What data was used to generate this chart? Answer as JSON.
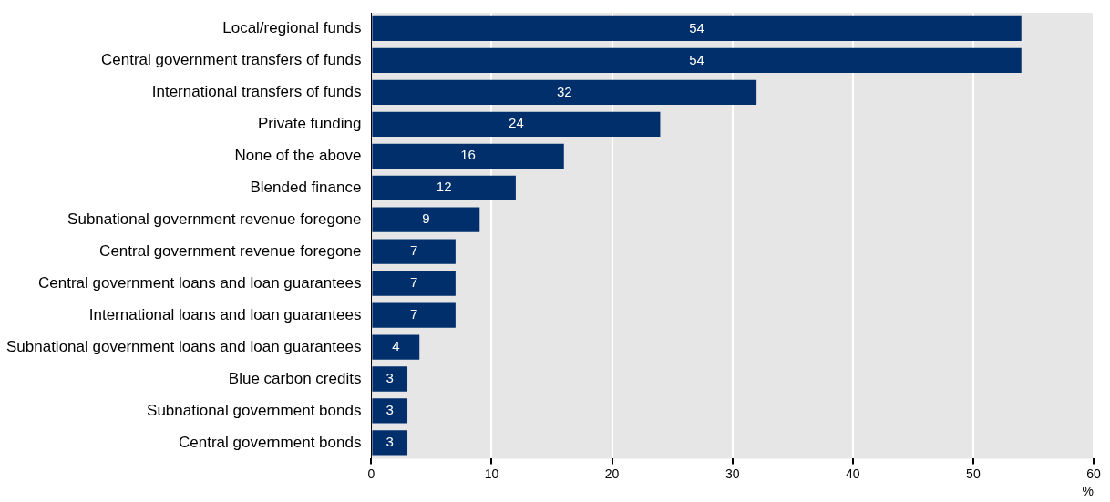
{
  "chart_data": {
    "type": "bar",
    "orientation": "horizontal",
    "xlabel": "%",
    "categories": [
      "Local/regional funds",
      "Central government transfers of funds",
      "International transfers of funds",
      "Private funding",
      "None of the above",
      "Blended finance",
      "Subnational government revenue foregone",
      "Central government revenue foregone",
      "Central government loans and loan guarantees",
      "International loans and loan guarantees",
      "Subnational government loans and loan guarantees",
      "Blue carbon credits",
      "Subnational government bonds",
      "Central government bonds"
    ],
    "values": [
      54,
      54,
      32,
      24,
      16,
      12,
      9,
      7,
      7,
      7,
      4,
      3,
      3,
      3
    ],
    "color": "#002f6c",
    "xlim": [
      0,
      60
    ],
    "xticks": [
      0,
      10,
      20,
      30,
      40,
      50,
      60
    ],
    "grid": "x",
    "data_labels": true,
    "legend": false
  }
}
